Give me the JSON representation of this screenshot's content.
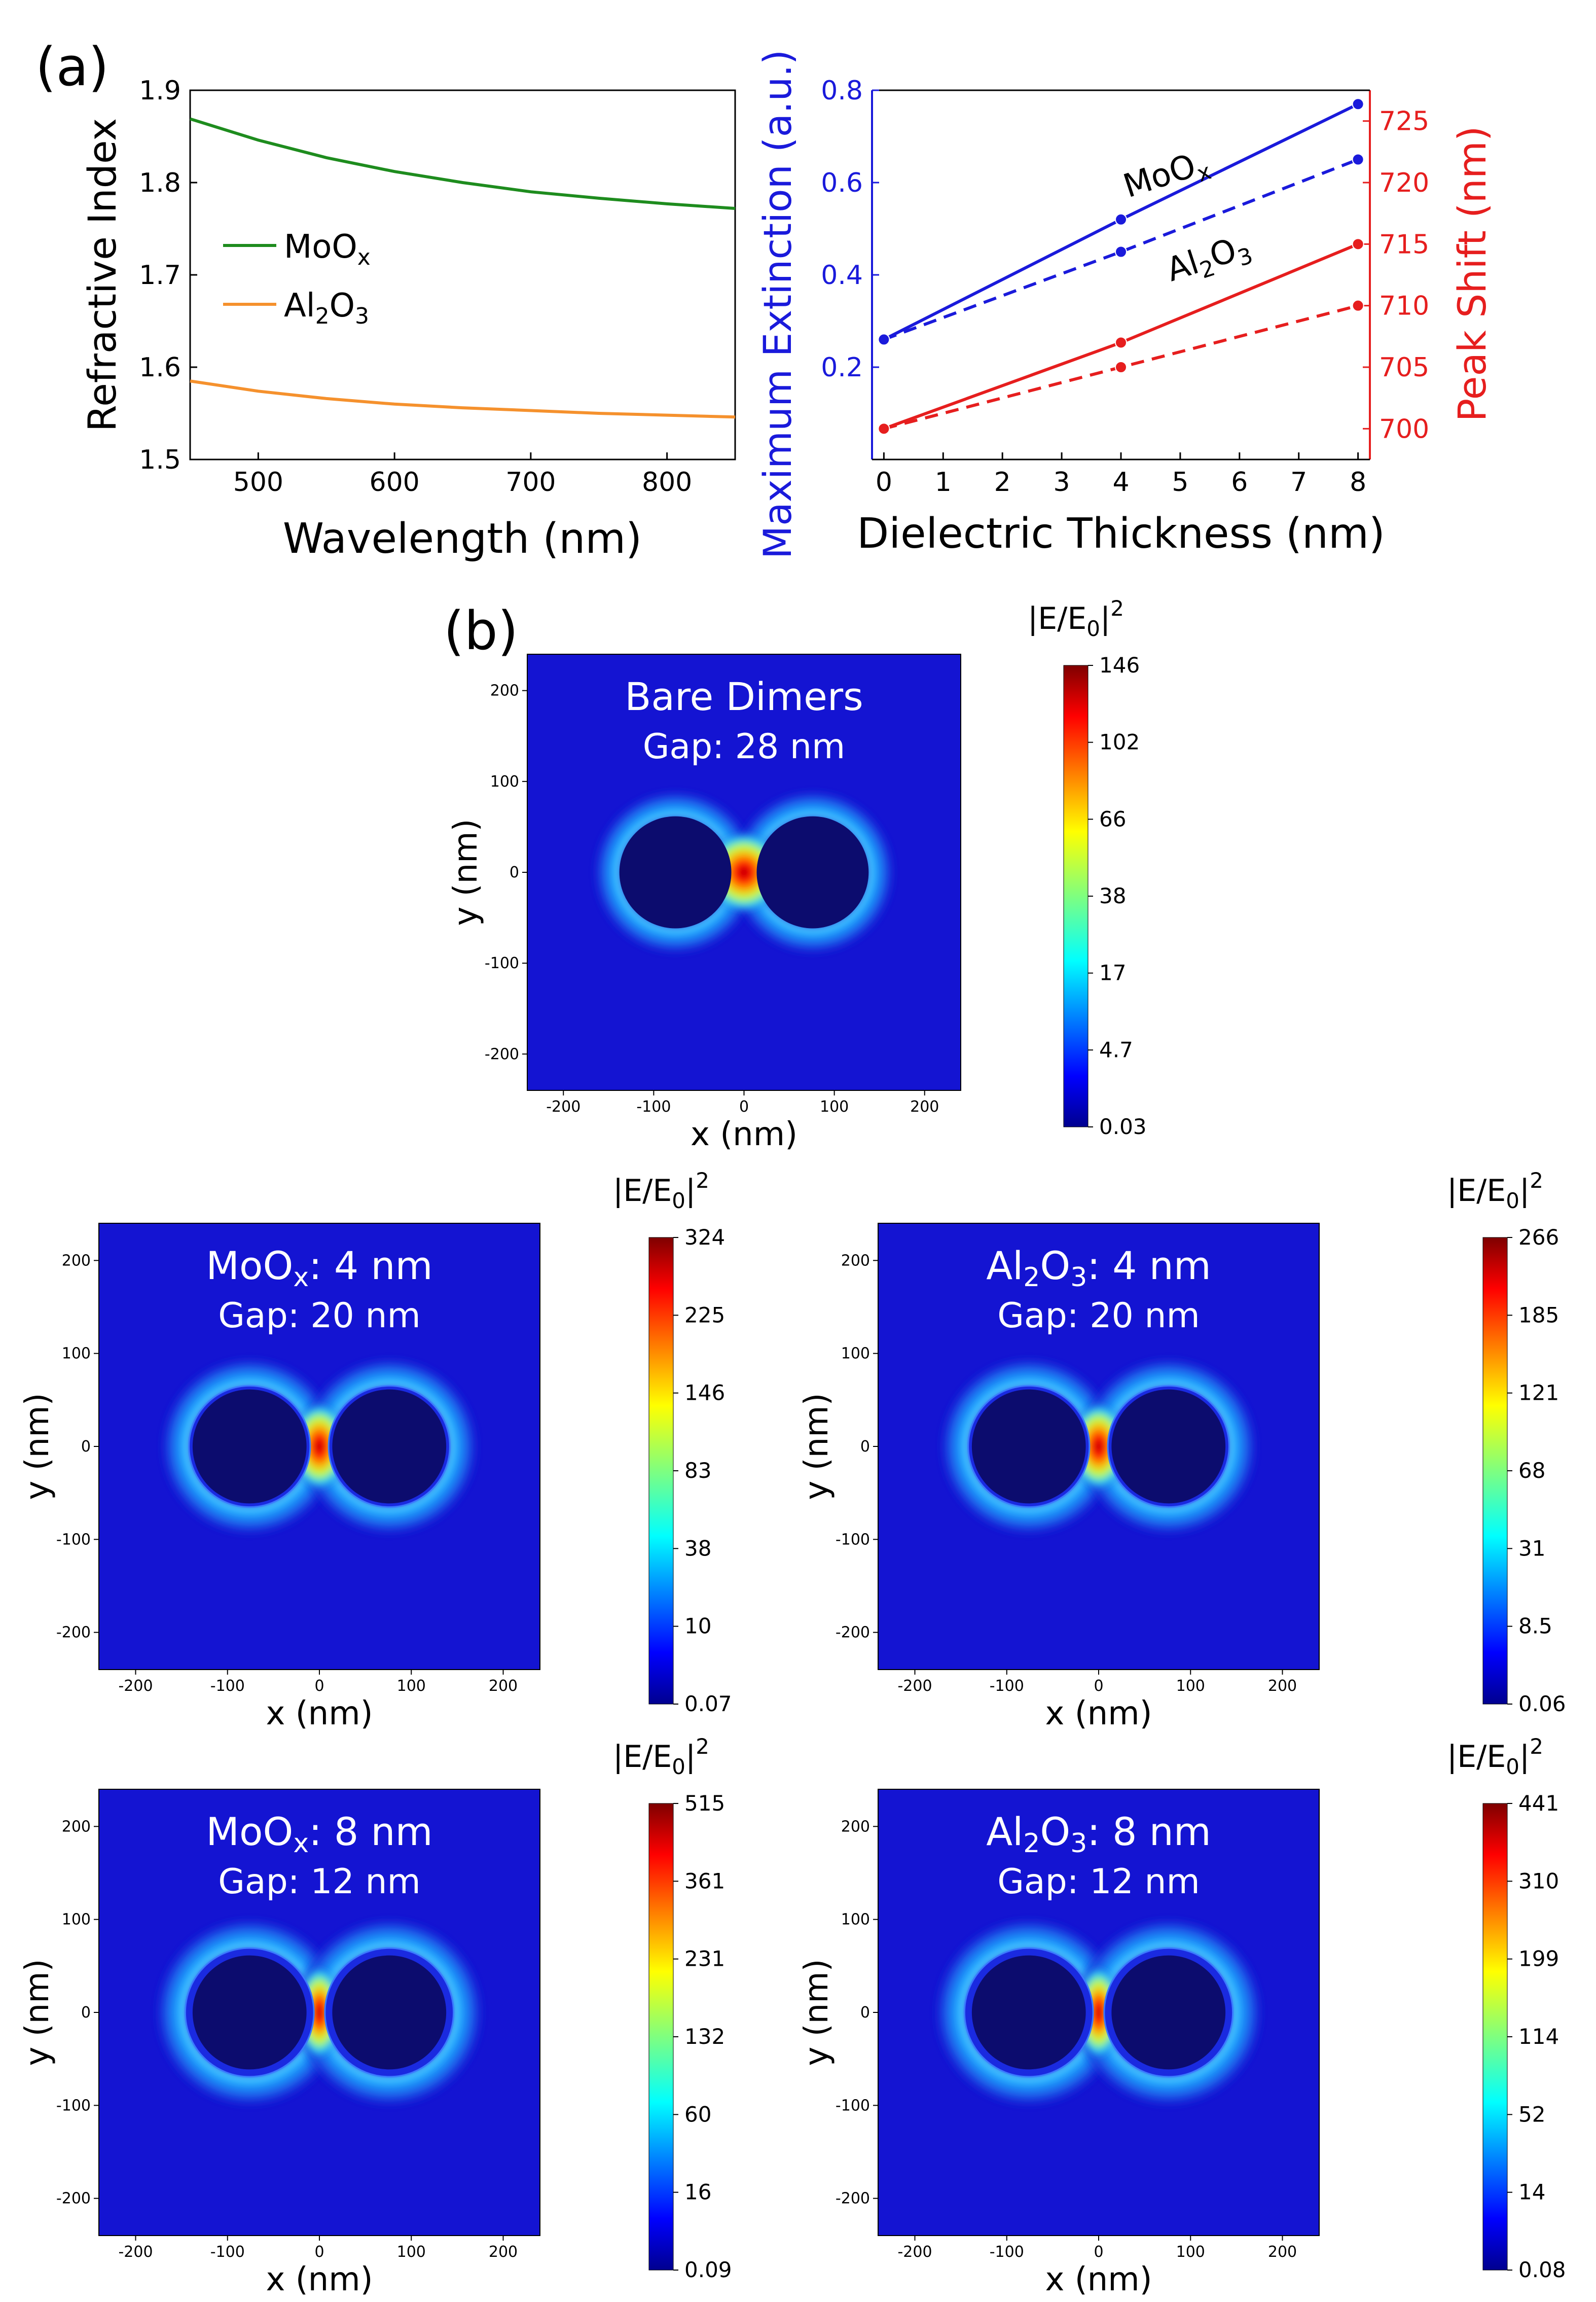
{
  "panel_labels": {
    "a": "(a)",
    "b": "(b)"
  },
  "colors": {
    "green": "#1e8c1e",
    "orange": "#f5912d",
    "blue": "#1a1adb",
    "red": "#e61e1e",
    "field_background": "#1414d2",
    "particle": "#0c0c6e",
    "axis": "#000000"
  },
  "chart_data": [
    {
      "id": "refractive-index",
      "type": "line",
      "title": "",
      "xlabel": "Wavelength (nm)",
      "ylabel": "Refractive Index",
      "xlim": [
        450,
        850
      ],
      "ylim": [
        1.5,
        1.9
      ],
      "xticks": [
        500,
        600,
        700,
        800
      ],
      "yticks": [
        1.5,
        1.6,
        1.7,
        1.8,
        1.9
      ],
      "legend_position": "left",
      "series": [
        {
          "name": "MoOx",
          "label_main": "MoO",
          "label_sub": "x",
          "color": "#1e8c1e",
          "x": [
            450,
            500,
            550,
            600,
            650,
            700,
            750,
            800,
            850
          ],
          "y": [
            1.869,
            1.846,
            1.827,
            1.812,
            1.8,
            1.79,
            1.783,
            1.777,
            1.772
          ]
        },
        {
          "name": "Al2O3",
          "label_main": "Al",
          "label_sub1": "2",
          "label_mid": "O",
          "label_sub2": "3",
          "color": "#f5912d",
          "x": [
            450,
            500,
            550,
            600,
            650,
            700,
            750,
            800,
            850
          ],
          "y": [
            1.585,
            1.574,
            1.566,
            1.56,
            1.556,
            1.553,
            1.55,
            1.548,
            1.546
          ]
        }
      ]
    },
    {
      "id": "extinction-peak-shift",
      "type": "line",
      "title": "",
      "xlabel": "Dielectric Thickness (nm)",
      "ylabel_left": "Maximum Extinction  (a.u.)",
      "ylabel_right": "Peak Shift  (nm)",
      "xlim": [
        -0.2,
        8.2
      ],
      "ylim_left": [
        0.0,
        0.8
      ],
      "ylim_right": [
        697.5,
        727.5
      ],
      "xticks": [
        0,
        1,
        2,
        3,
        4,
        5,
        6,
        7,
        8
      ],
      "yticks_left": [
        0.2,
        0.4,
        0.6,
        0.8
      ],
      "yticks_right": [
        700,
        705,
        710,
        715,
        720,
        725
      ],
      "series": [
        {
          "name": "Maximum Extinction MoOx",
          "axis": "left",
          "color": "#1a1adb",
          "dash": false,
          "x": [
            0,
            4,
            8
          ],
          "y": [
            0.26,
            0.52,
            0.77
          ]
        },
        {
          "name": "Maximum Extinction Al2O3",
          "axis": "left",
          "color": "#1a1adb",
          "dash": true,
          "x": [
            0,
            4,
            8
          ],
          "y": [
            0.26,
            0.45,
            0.65
          ]
        },
        {
          "name": "Peak Shift MoOx",
          "axis": "right",
          "color": "#e61e1e",
          "dash": false,
          "x": [
            0,
            4,
            8
          ],
          "y": [
            700,
            707,
            715
          ]
        },
        {
          "name": "Peak Shift Al2O3",
          "axis": "right",
          "color": "#e61e1e",
          "dash": true,
          "x": [
            0,
            4,
            8
          ],
          "y": [
            700,
            705,
            710
          ]
        }
      ],
      "annotations": [
        {
          "main": "MoO",
          "sub": "x"
        },
        {
          "main": "Al",
          "sub1": "2",
          "mid": "O",
          "sub2": "3"
        }
      ]
    },
    {
      "id": "near-field-maps",
      "type": "heatmap",
      "xlabel": "x (nm)",
      "ylabel": "y (nm)",
      "xlim": [
        -240,
        240
      ],
      "ylim": [
        -240,
        240
      ],
      "ticks": [
        -200,
        -100,
        0,
        100,
        200
      ],
      "colorbar_title_main": "|E/E",
      "colorbar_title_sub": "0",
      "colorbar_title_end": "|",
      "colorbar_title_sup": "2",
      "maps": [
        {
          "key": "bare",
          "title_line1": "Bare Dimers",
          "title_main": "",
          "title_sub1": "",
          "title_mid": "",
          "title_sub2": "",
          "title_end": "",
          "title_line2": "Gap: 28 nm",
          "coating_nm": 0,
          "gap_nm": 28,
          "colorbar_ticks": [
            "146",
            "102",
            "66",
            "38",
            "17",
            "4.7",
            "0.03"
          ]
        },
        {
          "key": "moox4",
          "title_line1": "",
          "title_main": "MoO",
          "title_sub1": "x",
          "title_mid": "",
          "title_sub2": "",
          "title_end": ": 4 nm",
          "title_line2": "Gap: 20 nm",
          "coating_nm": 4,
          "gap_nm": 20,
          "colorbar_ticks": [
            "324",
            "225",
            "146",
            "83",
            "38",
            "10",
            "0.07"
          ]
        },
        {
          "key": "al2o3_4",
          "title_line1": "",
          "title_main": "Al",
          "title_sub1": "2",
          "title_mid": "O",
          "title_sub2": "3",
          "title_end": ": 4 nm",
          "title_line2": "Gap: 20 nm",
          "coating_nm": 4,
          "gap_nm": 20,
          "colorbar_ticks": [
            "266",
            "185",
            "121",
            "68",
            "31",
            "8.5",
            "0.06"
          ]
        },
        {
          "key": "moox8",
          "title_line1": "",
          "title_main": "MoO",
          "title_sub1": "x",
          "title_mid": "",
          "title_sub2": "",
          "title_end": ": 8 nm",
          "title_line2": "Gap: 12 nm",
          "coating_nm": 8,
          "gap_nm": 12,
          "colorbar_ticks": [
            "515",
            "361",
            "231",
            "132",
            "60",
            "16",
            "0.09"
          ]
        },
        {
          "key": "al2o3_8",
          "title_line1": "",
          "title_main": "Al",
          "title_sub1": "2",
          "title_mid": "O",
          "title_sub2": "3",
          "title_end": ": 8 nm",
          "title_line2": "Gap: 12 nm",
          "coating_nm": 8,
          "gap_nm": 12,
          "colorbar_ticks": [
            "441",
            "310",
            "199",
            "114",
            "52",
            "14",
            "0.08"
          ]
        }
      ]
    }
  ]
}
